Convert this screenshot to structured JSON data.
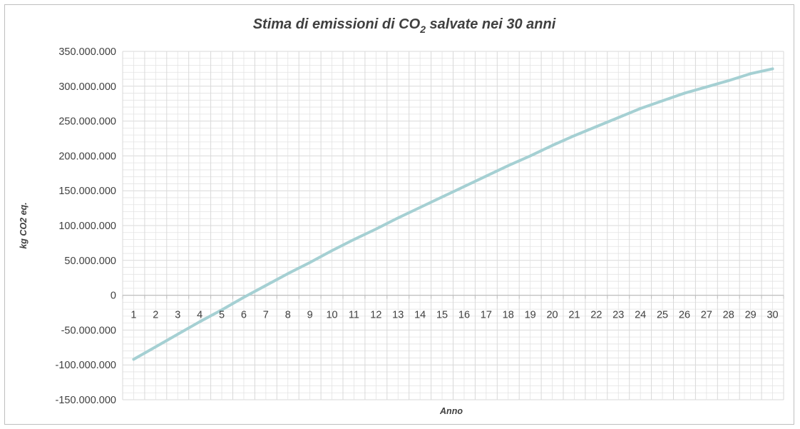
{
  "chart_data": {
    "type": "line",
    "title": {
      "prefix": "Stima di emissioni di CO",
      "subscript": "2",
      "suffix": " salvate nei 30 anni"
    },
    "xlabel": "Anno",
    "ylabel": "kg CO2 eq.",
    "ylim": [
      -150000000,
      350000000
    ],
    "y_ticks": [
      {
        "value": 350000000,
        "label": "350.000.000"
      },
      {
        "value": 300000000,
        "label": "300.000.000"
      },
      {
        "value": 250000000,
        "label": "250.000.000"
      },
      {
        "value": 200000000,
        "label": "200.000.000"
      },
      {
        "value": 150000000,
        "label": "150.000.000"
      },
      {
        "value": 100000000,
        "label": "100.000.000"
      },
      {
        "value": 50000000,
        "label": "50.000.000"
      },
      {
        "value": 0,
        "label": "0"
      },
      {
        "value": -50000000,
        "label": "-50.000.000"
      },
      {
        "value": -100000000,
        "label": "-100.000.000"
      },
      {
        "value": -150000000,
        "label": "-150.000.000"
      }
    ],
    "categories": [
      "1",
      "2",
      "3",
      "4",
      "5",
      "6",
      "7",
      "8",
      "9",
      "10",
      "11",
      "12",
      "13",
      "14",
      "15",
      "16",
      "17",
      "18",
      "19",
      "20",
      "21",
      "22",
      "23",
      "24",
      "25",
      "26",
      "27",
      "28",
      "29",
      "30"
    ],
    "series": [
      {
        "values": [
          -92000000,
          -74000000,
          -56000000,
          -38000000,
          -21000000,
          -3000000,
          14000000,
          31000000,
          47000000,
          64000000,
          80000000,
          95000000,
          111000000,
          126000000,
          141000000,
          156000000,
          171000000,
          186000000,
          200000000,
          215000000,
          229000000,
          242000000,
          255000000,
          268000000,
          279000000,
          290000000,
          299000000,
          308000000,
          318000000,
          325000000
        ]
      }
    ],
    "grid": true,
    "colors": {
      "line": "#a5d0d3",
      "grid": "#e3e3e3",
      "axis": "#bfbfbf",
      "text": "#404040"
    }
  }
}
